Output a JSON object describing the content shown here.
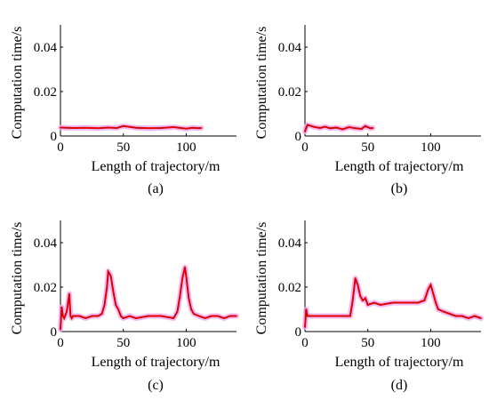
{
  "chart_data": [
    {
      "type": "line",
      "caption": "(a)",
      "xlabel": "Length of trajectory/m",
      "ylabel": "Computation time/s",
      "xlim": [
        0,
        140
      ],
      "ylim": [
        0,
        0.05
      ],
      "xticks": [
        0,
        50,
        100
      ],
      "xtick_labels": [
        "0",
        "50",
        "100"
      ],
      "yticks": [
        0,
        0.02,
        0.04
      ],
      "ytick_labels": [
        "0",
        "0.02",
        "0.04"
      ],
      "grid": false,
      "series": [
        {
          "color": "#dd0000",
          "halo": "#f2a6f0",
          "x": [
            0,
            10,
            20,
            30,
            38,
            45,
            50,
            60,
            70,
            80,
            90,
            100,
            105,
            110,
            112
          ],
          "y": [
            0.0038,
            0.0036,
            0.0037,
            0.0035,
            0.0038,
            0.0036,
            0.0045,
            0.0037,
            0.0035,
            0.0036,
            0.004,
            0.0033,
            0.0037,
            0.0035,
            0.0036
          ]
        }
      ]
    },
    {
      "type": "line",
      "caption": "(b)",
      "xlabel": "Length of trajectory/m",
      "ylabel": "Computation time/s",
      "xlim": [
        0,
        140
      ],
      "ylim": [
        0,
        0.05
      ],
      "xticks": [
        0,
        50,
        100
      ],
      "xtick_labels": [
        "0",
        "50",
        "100"
      ],
      "yticks": [
        0,
        0.02,
        0.04
      ],
      "ytick_labels": [
        "0",
        "0.02",
        "0.04"
      ],
      "grid": false,
      "series": [
        {
          "color": "#dd0000",
          "halo": "#f2a6f0",
          "x": [
            0,
            2,
            5,
            8,
            12,
            16,
            20,
            25,
            30,
            35,
            40,
            45,
            48,
            52,
            54
          ],
          "y": [
            0.002,
            0.005,
            0.0045,
            0.004,
            0.0036,
            0.0042,
            0.0035,
            0.0038,
            0.003,
            0.004,
            0.0035,
            0.0032,
            0.0045,
            0.0035,
            0.0036
          ]
        }
      ]
    },
    {
      "type": "line",
      "caption": "(c)",
      "xlabel": "Length of trajectory/m",
      "ylabel": "Computation time/s",
      "xlim": [
        0,
        140
      ],
      "ylim": [
        0,
        0.05
      ],
      "xticks": [
        0,
        50,
        100
      ],
      "xtick_labels": [
        "0",
        "50",
        "100"
      ],
      "yticks": [
        0,
        0.02,
        0.04
      ],
      "ytick_labels": [
        "0",
        "0.02",
        "0.04"
      ],
      "grid": false,
      "series": [
        {
          "color": "#dd0000",
          "halo": "#f2a6f0",
          "x": [
            0,
            1,
            2,
            3,
            5,
            7,
            8,
            9,
            10,
            15,
            20,
            25,
            30,
            33,
            35,
            37,
            38,
            40,
            42,
            44,
            46,
            48,
            50,
            55,
            60,
            70,
            80,
            90,
            93,
            95,
            97,
            99,
            100,
            102,
            104,
            106,
            110,
            115,
            120,
            125,
            130,
            135,
            140
          ],
          "y": [
            0.001,
            0.011,
            0.007,
            0.006,
            0.009,
            0.017,
            0.007,
            0.006,
            0.007,
            0.007,
            0.006,
            0.007,
            0.007,
            0.008,
            0.012,
            0.02,
            0.027,
            0.025,
            0.018,
            0.012,
            0.01,
            0.007,
            0.006,
            0.007,
            0.006,
            0.007,
            0.007,
            0.006,
            0.009,
            0.016,
            0.024,
            0.029,
            0.025,
            0.015,
            0.01,
            0.008,
            0.007,
            0.006,
            0.007,
            0.007,
            0.006,
            0.007,
            0.007
          ]
        }
      ]
    },
    {
      "type": "line",
      "caption": "(d)",
      "xlabel": "Length of trajectory/m",
      "ylabel": "Computation time/s",
      "xlim": [
        0,
        140
      ],
      "ylim": [
        0,
        0.05
      ],
      "xticks": [
        0,
        50,
        100
      ],
      "xtick_labels": [
        "0",
        "50",
        "100"
      ],
      "yticks": [
        0,
        0.02,
        0.04
      ],
      "ytick_labels": [
        "0",
        "0.02",
        "0.04"
      ],
      "grid": false,
      "series": [
        {
          "color": "#dd0000",
          "halo": "#f2a6f0",
          "x": [
            0,
            1,
            2,
            5,
            10,
            20,
            30,
            36,
            38,
            40,
            42,
            44,
            46,
            48,
            50,
            55,
            60,
            70,
            80,
            90,
            95,
            98,
            100,
            102,
            104,
            106,
            110,
            115,
            120,
            125,
            130,
            135,
            140
          ],
          "y": [
            0.002,
            0.01,
            0.007,
            0.007,
            0.007,
            0.007,
            0.007,
            0.007,
            0.014,
            0.024,
            0.021,
            0.016,
            0.014,
            0.015,
            0.012,
            0.013,
            0.012,
            0.013,
            0.013,
            0.013,
            0.014,
            0.019,
            0.021,
            0.017,
            0.013,
            0.01,
            0.009,
            0.008,
            0.007,
            0.007,
            0.006,
            0.007,
            0.006
          ]
        }
      ]
    }
  ]
}
